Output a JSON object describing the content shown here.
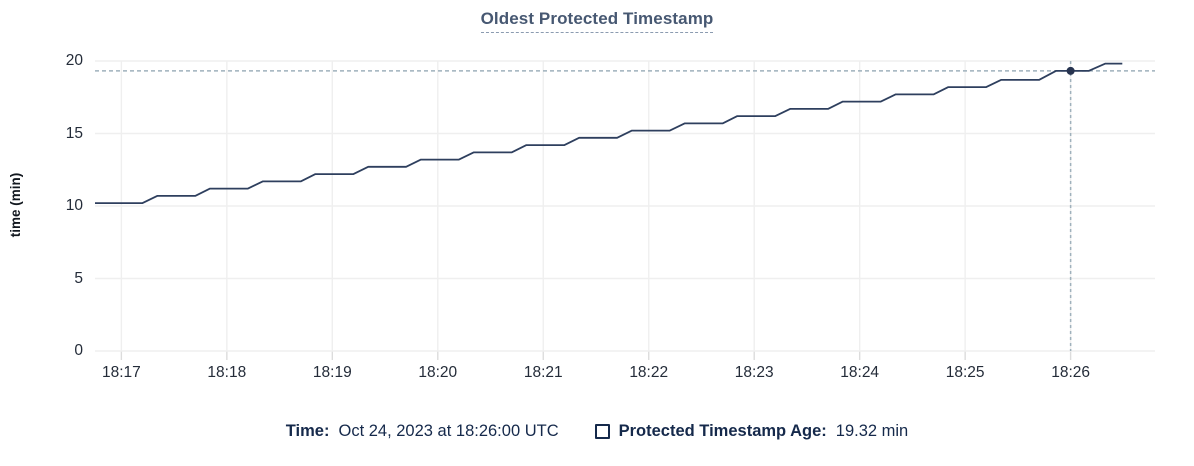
{
  "title": "Oldest Protected Timestamp",
  "chart_data": {
    "type": "line",
    "title": "Oldest Protected Timestamp",
    "xlabel": "",
    "ylabel": "time (min)",
    "ylim": [
      0,
      20
    ],
    "y_ticks": [
      0,
      5,
      10,
      15,
      20
    ],
    "x_axis_note": "x values are minutes after 18:16:00 UTC",
    "xlim": [
      0.75,
      10.8
    ],
    "x_ticks": [
      {
        "m": 1,
        "label": "18:17"
      },
      {
        "m": 2,
        "label": "18:18"
      },
      {
        "m": 3,
        "label": "18:19"
      },
      {
        "m": 4,
        "label": "18:20"
      },
      {
        "m": 5,
        "label": "18:21"
      },
      {
        "m": 6,
        "label": "18:22"
      },
      {
        "m": 7,
        "label": "18:23"
      },
      {
        "m": 8,
        "label": "18:24"
      },
      {
        "m": 9,
        "label": "18:25"
      },
      {
        "m": 10,
        "label": "18:26"
      }
    ],
    "grid": true,
    "legend_position": "bottom",
    "series": [
      {
        "name": "Protected Timestamp Age",
        "unit": "min",
        "points": [
          [
            0.75,
            10.2
          ],
          [
            1.2,
            10.2
          ],
          [
            1.34,
            10.7
          ],
          [
            1.7,
            10.7
          ],
          [
            1.84,
            11.2
          ],
          [
            2.2,
            11.2
          ],
          [
            2.34,
            11.7
          ],
          [
            2.7,
            11.7
          ],
          [
            2.84,
            12.2
          ],
          [
            3.2,
            12.2
          ],
          [
            3.34,
            12.7
          ],
          [
            3.7,
            12.7
          ],
          [
            3.84,
            13.2
          ],
          [
            4.2,
            13.2
          ],
          [
            4.34,
            13.7
          ],
          [
            4.7,
            13.7
          ],
          [
            4.84,
            14.2
          ],
          [
            5.2,
            14.2
          ],
          [
            5.34,
            14.7
          ],
          [
            5.7,
            14.7
          ],
          [
            5.84,
            15.2
          ],
          [
            6.2,
            15.2
          ],
          [
            6.34,
            15.7
          ],
          [
            6.7,
            15.7
          ],
          [
            6.84,
            16.2
          ],
          [
            7.2,
            16.2
          ],
          [
            7.34,
            16.7
          ],
          [
            7.7,
            16.7
          ],
          [
            7.84,
            17.2
          ],
          [
            8.2,
            17.2
          ],
          [
            8.34,
            17.7
          ],
          [
            8.7,
            17.7
          ],
          [
            8.84,
            18.2
          ],
          [
            9.2,
            18.2
          ],
          [
            9.34,
            18.7
          ],
          [
            9.7,
            18.7
          ],
          [
            9.86,
            19.32
          ],
          [
            10.17,
            19.32
          ],
          [
            10.33,
            19.82
          ],
          [
            10.49,
            19.82
          ]
        ]
      }
    ],
    "hover": {
      "x": 10.0,
      "value": 19.32,
      "time_label": "18:26:00"
    }
  },
  "footer": {
    "time_label": "Time:",
    "time_value": "Oct 24, 2023 at 18:26:00 UTC",
    "series_label": "Protected Timestamp Age:",
    "series_value": "19.32 min"
  },
  "colors": {
    "line": "#2e3f5e",
    "dot": "#26334f",
    "crosshair": "#9fb1bc",
    "grid": "#efefef",
    "tick_mark": "#dcdcdc",
    "title": "#475872",
    "footer_text": "#15294b",
    "axis_label": "#242c39"
  }
}
